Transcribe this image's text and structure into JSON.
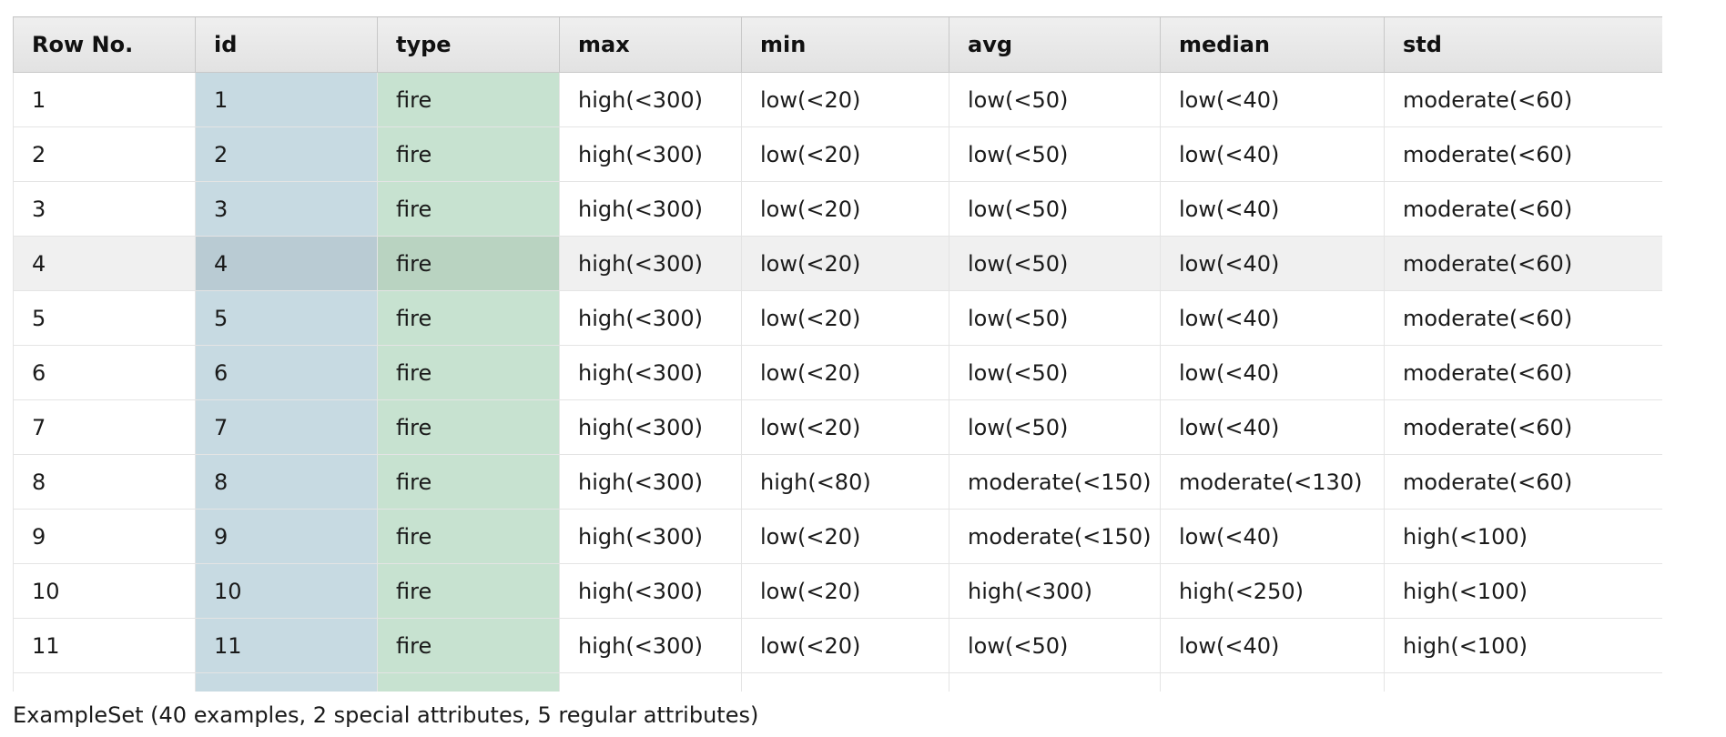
{
  "table": {
    "headers": [
      "Row No.",
      "id",
      "type",
      "max",
      "min",
      "avg",
      "median",
      "std"
    ],
    "rows": [
      [
        "1",
        "1",
        "fire",
        "high(<300)",
        "low(<20)",
        "low(<50)",
        "low(<40)",
        "moderate(<60)"
      ],
      [
        "2",
        "2",
        "fire",
        "high(<300)",
        "low(<20)",
        "low(<50)",
        "low(<40)",
        "moderate(<60)"
      ],
      [
        "3",
        "3",
        "fire",
        "high(<300)",
        "low(<20)",
        "low(<50)",
        "low(<40)",
        "moderate(<60)"
      ],
      [
        "4",
        "4",
        "fire",
        "high(<300)",
        "low(<20)",
        "low(<50)",
        "low(<40)",
        "moderate(<60)"
      ],
      [
        "5",
        "5",
        "fire",
        "high(<300)",
        "low(<20)",
        "low(<50)",
        "low(<40)",
        "moderate(<60)"
      ],
      [
        "6",
        "6",
        "fire",
        "high(<300)",
        "low(<20)",
        "low(<50)",
        "low(<40)",
        "moderate(<60)"
      ],
      [
        "7",
        "7",
        "fire",
        "high(<300)",
        "low(<20)",
        "low(<50)",
        "low(<40)",
        "moderate(<60)"
      ],
      [
        "8",
        "8",
        "fire",
        "high(<300)",
        "high(<80)",
        "moderate(<150)",
        "moderate(<130)",
        "moderate(<60)"
      ],
      [
        "9",
        "9",
        "fire",
        "high(<300)",
        "low(<20)",
        "moderate(<150)",
        "low(<40)",
        "high(<100)"
      ],
      [
        "10",
        "10",
        "fire",
        "high(<300)",
        "low(<20)",
        "high(<300)",
        "high(<250)",
        "high(<100)"
      ],
      [
        "11",
        "11",
        "fire",
        "high(<300)",
        "low(<20)",
        "low(<50)",
        "low(<40)",
        "high(<100)"
      ]
    ],
    "highlighted_row": "4"
  },
  "status_text": "ExampleSet (40 examples, 2 special attributes, 5 regular attributes)",
  "colors": {
    "id_column": "#c7dae2",
    "type_column": "#c7e2d0",
    "header_bg": "#e6e6e6",
    "highlight_row": "#f0f0f0"
  }
}
